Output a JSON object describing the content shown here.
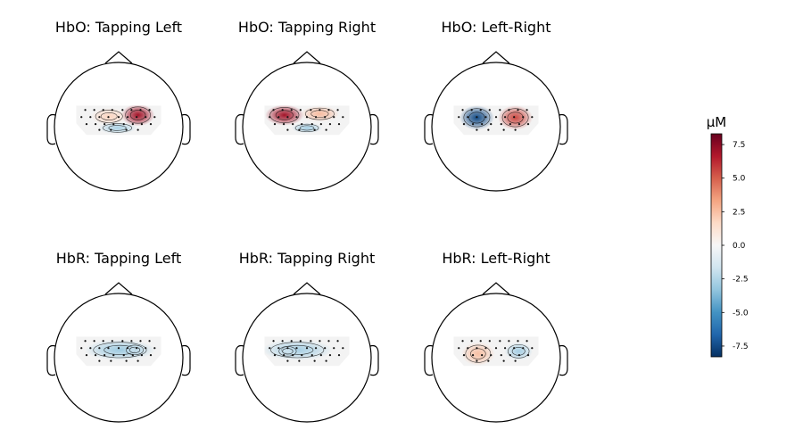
{
  "figure": {
    "panels": [
      {
        "title": "HbO: Tapping Left",
        "blobs": [
          {
            "cx": 0.3,
            "cy": -0.18,
            "rx": 0.26,
            "ry": 0.17,
            "value": 7.0
          },
          {
            "cx": -0.15,
            "cy": -0.16,
            "rx": 0.28,
            "ry": 0.13,
            "value": 1.8
          },
          {
            "cx": -0.02,
            "cy": 0.02,
            "rx": 0.3,
            "ry": 0.09,
            "value": -2.6
          }
        ]
      },
      {
        "title": "HbO: Tapping Right",
        "blobs": [
          {
            "cx": -0.35,
            "cy": -0.18,
            "rx": 0.3,
            "ry": 0.16,
            "value": 7.0
          },
          {
            "cx": 0.2,
            "cy": -0.2,
            "rx": 0.3,
            "ry": 0.12,
            "value": 2.6
          },
          {
            "cx": 0.0,
            "cy": 0.02,
            "rx": 0.24,
            "ry": 0.08,
            "value": -2.8
          }
        ]
      },
      {
        "title": "HbO: Left-Right",
        "blobs": [
          {
            "cx": -0.3,
            "cy": -0.14,
            "rx": 0.27,
            "ry": 0.19,
            "value": -7.5
          },
          {
            "cx": 0.3,
            "cy": -0.14,
            "rx": 0.27,
            "ry": 0.19,
            "value": 5.5
          }
        ]
      },
      {
        "title": "HbR: Tapping Left",
        "blobs": [
          {
            "cx": 0.02,
            "cy": -0.12,
            "rx": 0.55,
            "ry": 0.16,
            "value": -3.0
          },
          {
            "cx": 0.25,
            "cy": -0.12,
            "rx": 0.18,
            "ry": 0.1,
            "value": -2.0
          }
        ]
      },
      {
        "title": "HbR: Tapping Right",
        "blobs": [
          {
            "cx": -0.15,
            "cy": -0.12,
            "rx": 0.55,
            "ry": 0.16,
            "value": -2.8
          },
          {
            "cx": -0.3,
            "cy": -0.1,
            "rx": 0.18,
            "ry": 0.1,
            "value": -1.8
          }
        ]
      },
      {
        "title": "HbR: Left-Right",
        "blobs": [
          {
            "cx": -0.28,
            "cy": -0.06,
            "rx": 0.26,
            "ry": 0.18,
            "value": 2.5
          },
          {
            "cx": 0.35,
            "cy": -0.1,
            "rx": 0.22,
            "ry": 0.14,
            "value": -2.8
          }
        ]
      }
    ],
    "colorbar": {
      "unit": "µM",
      "min": -8.3,
      "max": 8.3,
      "ticks": [
        7.5,
        5.0,
        2.5,
        0.0,
        -2.5,
        -5.0,
        -7.5
      ],
      "tick_labels": [
        "7.5",
        "5.0",
        "2.5",
        "0.0",
        "-2.5",
        "-5.0",
        "-7.5"
      ],
      "colormap": "RdBu_r"
    }
  }
}
